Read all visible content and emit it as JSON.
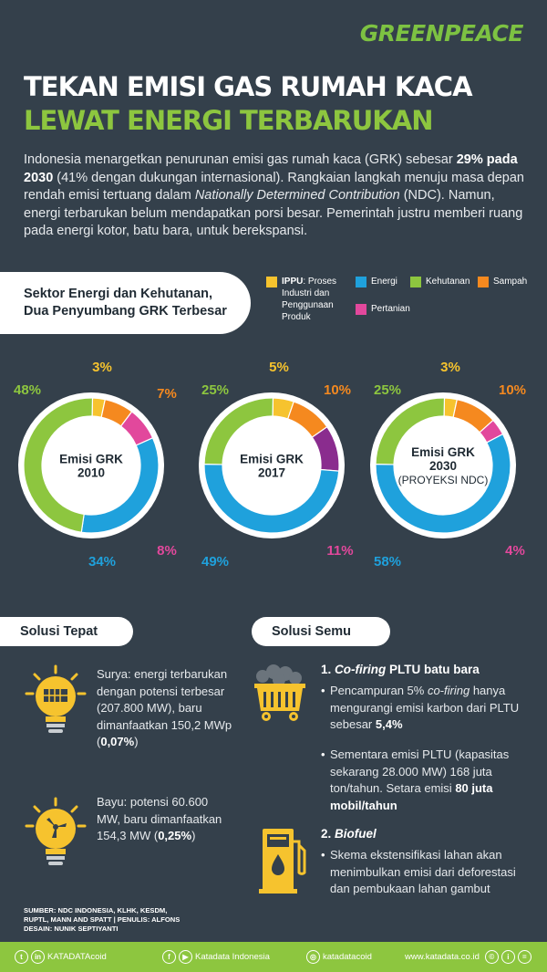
{
  "brand": "GREENPEACE",
  "title": {
    "line1": "TEKAN EMISI GAS RUMAH KACA",
    "line2": "LEWAT ENERGI TERBARUKAN"
  },
  "intro": {
    "p1": "Indonesia menargetkan penurunan emisi gas rumah kaca (GRK) sebesar ",
    "p1_bold": "29% pada 2030",
    "p1_end": " (41% dengan dukungan internasional). Rangkaian langkah menuju masa depan rendah emisi tertuang dalam ",
    "p1_ital": "Nationally Determined Contribution",
    "p1_tail": " (NDC). Namun, energi terbarukan belum mendapatkan porsi besar. Pemerintah justru memberi ruang pada energi kotor, batu bara, untuk berekspansi."
  },
  "section": {
    "line1": "Sektor Energi dan Kehutanan,",
    "line2": "Dua Penyumbang GRK Terbesar"
  },
  "legend": {
    "ippu_bold": "IPPU",
    "ippu_rest": ": Proses Industri dan Penggunaan Produk",
    "energi": "Energi",
    "kehutanan": "Kehutanan",
    "sampah": "Sampah",
    "pertanian": "Pertanian"
  },
  "colors": {
    "ippu": "#f6c32e",
    "energi": "#1fa1dc",
    "kehutanan": "#8dc63f",
    "sampah": "#f5891f",
    "pertanian": "#e2489c",
    "pertanian_2017": "#8a2c8e"
  },
  "chart_data": [
    {
      "type": "pie",
      "center_line1": "Emisi GRK",
      "center_line2": "2010",
      "center_line3": "",
      "slices": [
        {
          "name": "IPPU",
          "label": "3%",
          "value": 3
        },
        {
          "name": "Sampah",
          "label": "7%",
          "value": 7
        },
        {
          "name": "Pertanian",
          "label": "8%",
          "value": 8
        },
        {
          "name": "Energi",
          "label": "34%",
          "value": 34
        },
        {
          "name": "Kehutanan",
          "label": "48%",
          "value": 48
        }
      ]
    },
    {
      "type": "pie",
      "center_line1": "Emisi GRK",
      "center_line2": "2017",
      "center_line3": "",
      "slices": [
        {
          "name": "IPPU",
          "label": "5%",
          "value": 5
        },
        {
          "name": "Sampah",
          "label": "10%",
          "value": 10
        },
        {
          "name": "Pertanian",
          "label": "11%",
          "value": 11
        },
        {
          "name": "Energi",
          "label": "49%",
          "value": 49
        },
        {
          "name": "Kehutanan",
          "label": "25%",
          "value": 25
        }
      ]
    },
    {
      "type": "pie",
      "center_line1": "Emisi GRK",
      "center_line2": "2030",
      "center_line3": "(PROYEKSI NDC)",
      "slices": [
        {
          "name": "IPPU",
          "label": "3%",
          "value": 3
        },
        {
          "name": "Sampah",
          "label": "10%",
          "value": 10
        },
        {
          "name": "Pertanian",
          "label": "4%",
          "value": 4
        },
        {
          "name": "Energi",
          "label": "58%",
          "value": 58
        },
        {
          "name": "Kehutanan",
          "label": "25%",
          "value": 25
        }
      ]
    }
  ],
  "solusi_tepat": {
    "label": "Solusi Tepat",
    "surya_text": "Surya: energi terbarukan dengan potensi terbesar (207.800 MW), baru dimanfaatkan 150,2 MWp (",
    "surya_bold": "0,07%",
    "surya_end": ")",
    "bayu_text": "Bayu: potensi 60.600 MW, baru dimanfaatkan 154,3 MW (",
    "bayu_bold": "0,25%",
    "bayu_end": ")"
  },
  "solusi_semu": {
    "label": "Solusi Semu",
    "h1_num": "1. ",
    "h1_ital": "Co-firing",
    "h1_rest": " PLTU batu bara",
    "b1_a": "Pencampuran 5% ",
    "b1_ital": "co-firing",
    "b1_b": " hanya mengurangi emisi karbon dari PLTU sebesar ",
    "b1_bold": "5,4%",
    "b2_a": "Sementara emisi PLTU (kapasitas sekarang 28.000 MW) 168 juta ton/tahun. Setara emisi ",
    "b2_bold": "80 juta mobil/tahun",
    "h2_num": "2. ",
    "h2_ital": "Biofuel",
    "b3": "Skema ekstensifikasi lahan akan menimbulkan emisi dari deforestasi dan pembukaan lahan gambut"
  },
  "source": {
    "line1": "SUMBER: NDC INDONESIA, KLHK, KESDM,",
    "line2": "RUPTL, MANN AND SPATT  |  PENULIS: ALFONS",
    "line3": "DESAIN: NUNIK SEPTIYANTI"
  },
  "footer": {
    "handle1": "KATADATAcoid",
    "handle2": "Katadata Indonesia",
    "handle3": "katadatacoid",
    "site": "www.katadata.co.id"
  }
}
